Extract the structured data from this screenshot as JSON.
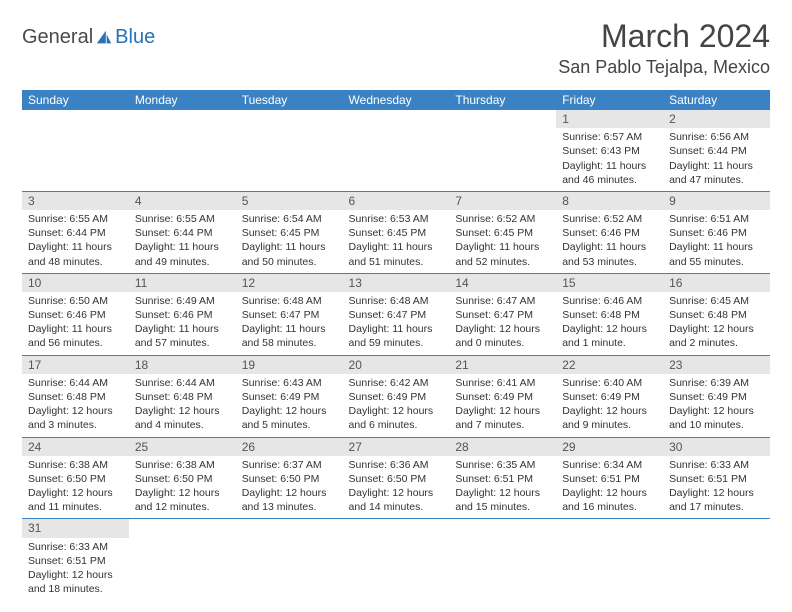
{
  "brand": {
    "word1": "General",
    "word2": "Blue",
    "color_g": "#4a4a4a",
    "color_b": "#2a72b5"
  },
  "header": {
    "title": "March 2024",
    "location": "San Pablo Tejalpa, Mexico"
  },
  "style": {
    "header_bg": "#3b82c4",
    "header_fg": "#ffffff",
    "row_sep": "#3b82c4",
    "daynum_bg": "#e6e6e6",
    "title_fontsize": 32,
    "location_fontsize": 18,
    "cell_fontsize": 10.5,
    "th_fontsize": 12
  },
  "weekdays": [
    "Sunday",
    "Monday",
    "Tuesday",
    "Wednesday",
    "Thursday",
    "Friday",
    "Saturday"
  ],
  "weeks": [
    [
      {
        "n": "",
        "l": []
      },
      {
        "n": "",
        "l": []
      },
      {
        "n": "",
        "l": []
      },
      {
        "n": "",
        "l": []
      },
      {
        "n": "",
        "l": []
      },
      {
        "n": "1",
        "l": [
          "Sunrise: 6:57 AM",
          "Sunset: 6:43 PM",
          "Daylight: 11 hours",
          "and 46 minutes."
        ]
      },
      {
        "n": "2",
        "l": [
          "Sunrise: 6:56 AM",
          "Sunset: 6:44 PM",
          "Daylight: 11 hours",
          "and 47 minutes."
        ]
      }
    ],
    [
      {
        "n": "3",
        "l": [
          "Sunrise: 6:55 AM",
          "Sunset: 6:44 PM",
          "Daylight: 11 hours",
          "and 48 minutes."
        ]
      },
      {
        "n": "4",
        "l": [
          "Sunrise: 6:55 AM",
          "Sunset: 6:44 PM",
          "Daylight: 11 hours",
          "and 49 minutes."
        ]
      },
      {
        "n": "5",
        "l": [
          "Sunrise: 6:54 AM",
          "Sunset: 6:45 PM",
          "Daylight: 11 hours",
          "and 50 minutes."
        ]
      },
      {
        "n": "6",
        "l": [
          "Sunrise: 6:53 AM",
          "Sunset: 6:45 PM",
          "Daylight: 11 hours",
          "and 51 minutes."
        ]
      },
      {
        "n": "7",
        "l": [
          "Sunrise: 6:52 AM",
          "Sunset: 6:45 PM",
          "Daylight: 11 hours",
          "and 52 minutes."
        ]
      },
      {
        "n": "8",
        "l": [
          "Sunrise: 6:52 AM",
          "Sunset: 6:46 PM",
          "Daylight: 11 hours",
          "and 53 minutes."
        ]
      },
      {
        "n": "9",
        "l": [
          "Sunrise: 6:51 AM",
          "Sunset: 6:46 PM",
          "Daylight: 11 hours",
          "and 55 minutes."
        ]
      }
    ],
    [
      {
        "n": "10",
        "l": [
          "Sunrise: 6:50 AM",
          "Sunset: 6:46 PM",
          "Daylight: 11 hours",
          "and 56 minutes."
        ]
      },
      {
        "n": "11",
        "l": [
          "Sunrise: 6:49 AM",
          "Sunset: 6:46 PM",
          "Daylight: 11 hours",
          "and 57 minutes."
        ]
      },
      {
        "n": "12",
        "l": [
          "Sunrise: 6:48 AM",
          "Sunset: 6:47 PM",
          "Daylight: 11 hours",
          "and 58 minutes."
        ]
      },
      {
        "n": "13",
        "l": [
          "Sunrise: 6:48 AM",
          "Sunset: 6:47 PM",
          "Daylight: 11 hours",
          "and 59 minutes."
        ]
      },
      {
        "n": "14",
        "l": [
          "Sunrise: 6:47 AM",
          "Sunset: 6:47 PM",
          "Daylight: 12 hours",
          "and 0 minutes."
        ]
      },
      {
        "n": "15",
        "l": [
          "Sunrise: 6:46 AM",
          "Sunset: 6:48 PM",
          "Daylight: 12 hours",
          "and 1 minute."
        ]
      },
      {
        "n": "16",
        "l": [
          "Sunrise: 6:45 AM",
          "Sunset: 6:48 PM",
          "Daylight: 12 hours",
          "and 2 minutes."
        ]
      }
    ],
    [
      {
        "n": "17",
        "l": [
          "Sunrise: 6:44 AM",
          "Sunset: 6:48 PM",
          "Daylight: 12 hours",
          "and 3 minutes."
        ]
      },
      {
        "n": "18",
        "l": [
          "Sunrise: 6:44 AM",
          "Sunset: 6:48 PM",
          "Daylight: 12 hours",
          "and 4 minutes."
        ]
      },
      {
        "n": "19",
        "l": [
          "Sunrise: 6:43 AM",
          "Sunset: 6:49 PM",
          "Daylight: 12 hours",
          "and 5 minutes."
        ]
      },
      {
        "n": "20",
        "l": [
          "Sunrise: 6:42 AM",
          "Sunset: 6:49 PM",
          "Daylight: 12 hours",
          "and 6 minutes."
        ]
      },
      {
        "n": "21",
        "l": [
          "Sunrise: 6:41 AM",
          "Sunset: 6:49 PM",
          "Daylight: 12 hours",
          "and 7 minutes."
        ]
      },
      {
        "n": "22",
        "l": [
          "Sunrise: 6:40 AM",
          "Sunset: 6:49 PM",
          "Daylight: 12 hours",
          "and 9 minutes."
        ]
      },
      {
        "n": "23",
        "l": [
          "Sunrise: 6:39 AM",
          "Sunset: 6:49 PM",
          "Daylight: 12 hours",
          "and 10 minutes."
        ]
      }
    ],
    [
      {
        "n": "24",
        "l": [
          "Sunrise: 6:38 AM",
          "Sunset: 6:50 PM",
          "Daylight: 12 hours",
          "and 11 minutes."
        ]
      },
      {
        "n": "25",
        "l": [
          "Sunrise: 6:38 AM",
          "Sunset: 6:50 PM",
          "Daylight: 12 hours",
          "and 12 minutes."
        ]
      },
      {
        "n": "26",
        "l": [
          "Sunrise: 6:37 AM",
          "Sunset: 6:50 PM",
          "Daylight: 12 hours",
          "and 13 minutes."
        ]
      },
      {
        "n": "27",
        "l": [
          "Sunrise: 6:36 AM",
          "Sunset: 6:50 PM",
          "Daylight: 12 hours",
          "and 14 minutes."
        ]
      },
      {
        "n": "28",
        "l": [
          "Sunrise: 6:35 AM",
          "Sunset: 6:51 PM",
          "Daylight: 12 hours",
          "and 15 minutes."
        ]
      },
      {
        "n": "29",
        "l": [
          "Sunrise: 6:34 AM",
          "Sunset: 6:51 PM",
          "Daylight: 12 hours",
          "and 16 minutes."
        ]
      },
      {
        "n": "30",
        "l": [
          "Sunrise: 6:33 AM",
          "Sunset: 6:51 PM",
          "Daylight: 12 hours",
          "and 17 minutes."
        ]
      }
    ],
    [
      {
        "n": "31",
        "l": [
          "Sunrise: 6:33 AM",
          "Sunset: 6:51 PM",
          "Daylight: 12 hours",
          "and 18 minutes."
        ]
      },
      {
        "n": "",
        "l": []
      },
      {
        "n": "",
        "l": []
      },
      {
        "n": "",
        "l": []
      },
      {
        "n": "",
        "l": []
      },
      {
        "n": "",
        "l": []
      },
      {
        "n": "",
        "l": []
      }
    ]
  ]
}
